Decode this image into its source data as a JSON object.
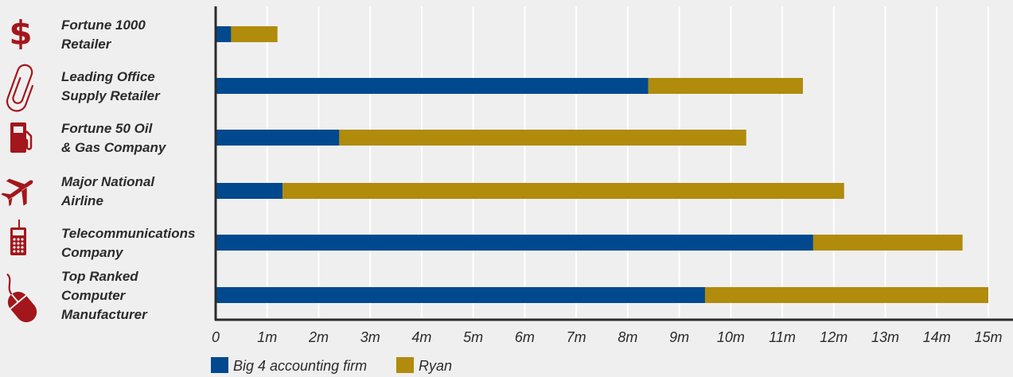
{
  "chart_data": {
    "type": "bar",
    "orientation": "horizontal",
    "stacked": true,
    "categories": [
      [
        "Fortune 1000",
        "Retailer"
      ],
      [
        "Leading Office",
        "Supply Retailer"
      ],
      [
        "Fortune 50 Oil",
        "& Gas Company"
      ],
      [
        "Major National",
        "Airline"
      ],
      [
        "Telecommunications",
        "Company"
      ],
      [
        "Top Ranked",
        "Computer",
        "Manufacturer"
      ]
    ],
    "category_icons": [
      "dollar-icon",
      "paperclip-icon",
      "fuel-pump-icon",
      "airplane-icon",
      "mobile-phone-icon",
      "computer-mouse-icon"
    ],
    "series": [
      {
        "name": "Big 4 accounting firm",
        "color": "#00498e",
        "values": [
          0.3,
          8.4,
          2.4,
          1.3,
          11.6,
          9.5
        ]
      },
      {
        "name": "Ryan",
        "color": "#b08b0c",
        "values": [
          0.9,
          3.0,
          7.9,
          10.9,
          2.9,
          5.5
        ]
      }
    ],
    "xlim": [
      0,
      15
    ],
    "xticks": [
      "0",
      "1m",
      "2m",
      "3m",
      "4m",
      "5m",
      "6m",
      "7m",
      "8m",
      "9m",
      "10m",
      "11m",
      "12m",
      "13m",
      "14m",
      "15m"
    ],
    "grid": true,
    "legend": "bottom-left",
    "title": "",
    "xlabel": "",
    "ylabel": ""
  },
  "colors": {
    "background": "#efefef",
    "icon": "#a3161b",
    "grid": "#ffffff",
    "axis": "#2b2b2b"
  }
}
